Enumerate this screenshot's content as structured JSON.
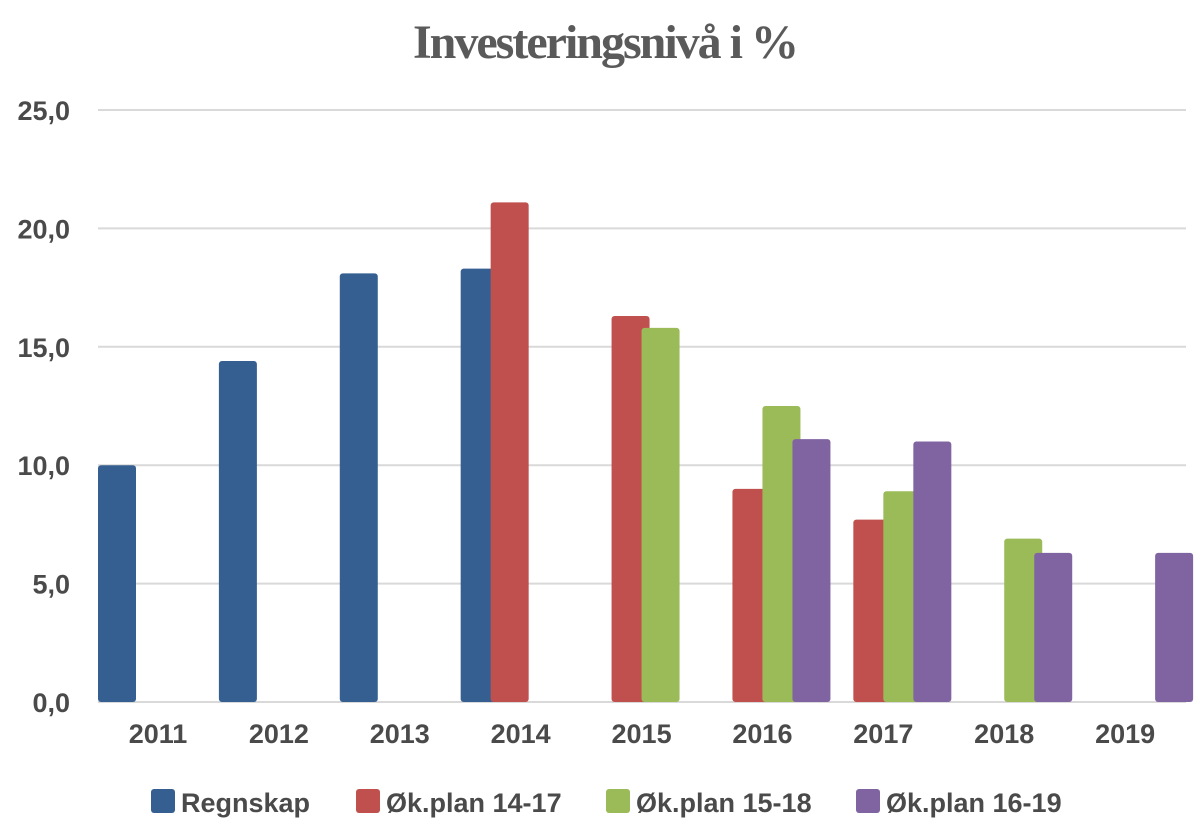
{
  "chart_data": {
    "type": "bar",
    "title": "Investeringsnivå i %",
    "xlabel": "",
    "ylabel": "",
    "categories": [
      "2011",
      "2012",
      "2013",
      "2014",
      "2015",
      "2016",
      "2017",
      "2018",
      "2019"
    ],
    "y_ticks": [
      "0,0",
      "5,0",
      "10,0",
      "15,0",
      "20,0",
      "25,0"
    ],
    "ylim": [
      0,
      25
    ],
    "grid": true,
    "legend_position": "bottom",
    "series": [
      {
        "name": "Regnskap",
        "color": "#365f91",
        "values": [
          10.0,
          14.4,
          18.1,
          18.3,
          null,
          null,
          null,
          null,
          null
        ]
      },
      {
        "name": "Øk.plan 14-17",
        "color": "#c0504d",
        "values": [
          null,
          null,
          null,
          21.1,
          16.3,
          9.0,
          7.7,
          null,
          null
        ]
      },
      {
        "name": "Øk.plan 15-18",
        "color": "#9bbb59",
        "values": [
          null,
          null,
          null,
          null,
          15.8,
          12.5,
          8.9,
          6.9,
          null
        ]
      },
      {
        "name": "Øk.plan 16-19",
        "color": "#8064a2",
        "values": [
          null,
          null,
          null,
          null,
          null,
          11.1,
          11.0,
          6.3,
          6.3
        ]
      }
    ]
  }
}
